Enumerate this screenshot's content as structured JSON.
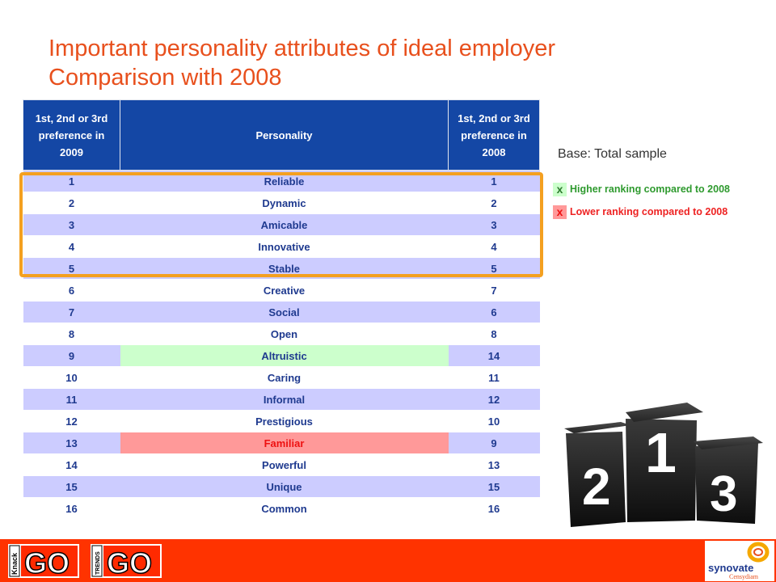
{
  "title": {
    "line1": "Important personality attributes of ideal employer",
    "line2": "Comparison with 2008"
  },
  "table": {
    "headers": [
      "1st, 2nd or 3rd preference in 2009",
      "Personality",
      "1st, 2nd or 3rd preference in 2008"
    ],
    "rows": [
      {
        "rank2009": "1",
        "attribute": "Reliable",
        "rank2008": "1",
        "status": ""
      },
      {
        "rank2009": "2",
        "attribute": "Dynamic",
        "rank2008": "2",
        "status": ""
      },
      {
        "rank2009": "3",
        "attribute": "Amicable",
        "rank2008": "3",
        "status": ""
      },
      {
        "rank2009": "4",
        "attribute": "Innovative",
        "rank2008": "4",
        "status": ""
      },
      {
        "rank2009": "5",
        "attribute": "Stable",
        "rank2008": "5",
        "status": ""
      },
      {
        "rank2009": "6",
        "attribute": "Creative",
        "rank2008": "7",
        "status": ""
      },
      {
        "rank2009": "7",
        "attribute": "Social",
        "rank2008": "6",
        "status": ""
      },
      {
        "rank2009": "8",
        "attribute": "Open",
        "rank2008": "8",
        "status": ""
      },
      {
        "rank2009": "9",
        "attribute": "Altruistic",
        "rank2008": "14",
        "status": "higher"
      },
      {
        "rank2009": "10",
        "attribute": "Caring",
        "rank2008": "11",
        "status": ""
      },
      {
        "rank2009": "11",
        "attribute": "Informal",
        "rank2008": "12",
        "status": ""
      },
      {
        "rank2009": "12",
        "attribute": "Prestigious",
        "rank2008": "10",
        "status": ""
      },
      {
        "rank2009": "13",
        "attribute": "Familiar",
        "rank2008": "9",
        "status": "lower"
      },
      {
        "rank2009": "14",
        "attribute": "Powerful",
        "rank2008": "13",
        "status": ""
      },
      {
        "rank2009": "15",
        "attribute": "Unique",
        "rank2008": "15",
        "status": ""
      },
      {
        "rank2009": "16",
        "attribute": "Common",
        "rank2008": "16",
        "status": ""
      }
    ]
  },
  "base_note": "Base: Total sample",
  "legend": {
    "higher_mark": "x",
    "higher_label": "Higher ranking compared to 2008",
    "lower_mark": "x",
    "lower_label": "Lower ranking compared to 2008"
  },
  "podium": {
    "first": "1",
    "second": "2",
    "third": "3"
  },
  "footer": {
    "logo_knack_side": "Knack",
    "logo_knack_main": "GO",
    "logo_ts_side": "TRENDS",
    "logo_ts_main": "GO",
    "logo_synovate": "synovate",
    "logo_synovate_sub": "Censydiam"
  },
  "colors": {
    "title": "#e8501d",
    "header_bg": "#1447a5",
    "row_shade": "#ccccff",
    "higher": "#ccffcc",
    "lower": "#ff9999",
    "highlight_border": "#f4a020",
    "footer_bg": "#ff3300"
  }
}
